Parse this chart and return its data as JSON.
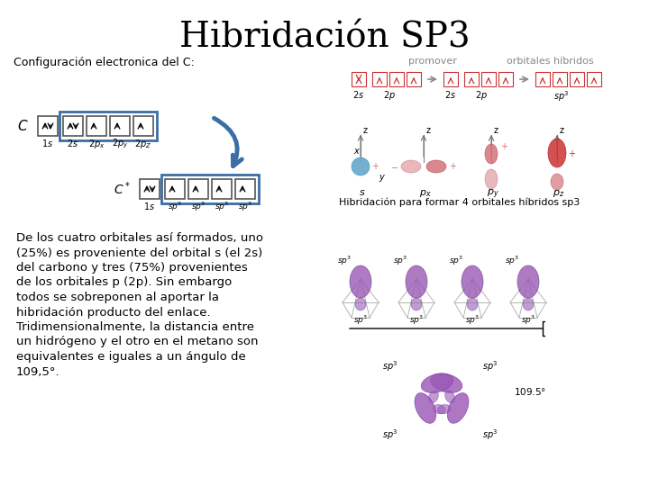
{
  "title": "Hibridación SP3",
  "subtitle": "Configuración electronica del C:",
  "background_color": "#ffffff",
  "title_fontsize": 28,
  "body_text_lines": [
    "De los cuatro orbitales así formados, uno",
    "(25%) es proveniente del orbital s (el 2s)",
    "del carbono y tres (75%) provenientes",
    "de los orbitales p (2p). Sin embargo",
    "todos se sobreponen al aportar la",
    "hibridación producto del enlace.",
    "Tridimensionalmente, la distancia entre",
    "un hidrógeno y el otro en el metano son",
    "equivalentes e iguales a un ángulo de",
    "109,5°."
  ],
  "box_color_blue": "#3a6ea5",
  "arrow_color": "#3a6ea5",
  "red_color": "#cc3333",
  "text_color": "#000000",
  "gray_color": "#888888",
  "pink_color": "#d4737a",
  "blue_orbital_color": "#5ba3c9",
  "purple_color": "#9b59b6",
  "label_promover": "promover",
  "label_orbitales": "orbitales híbridos",
  "label_hibridacion": "Hibridación para formar 4 orbitales híbridos sp3"
}
